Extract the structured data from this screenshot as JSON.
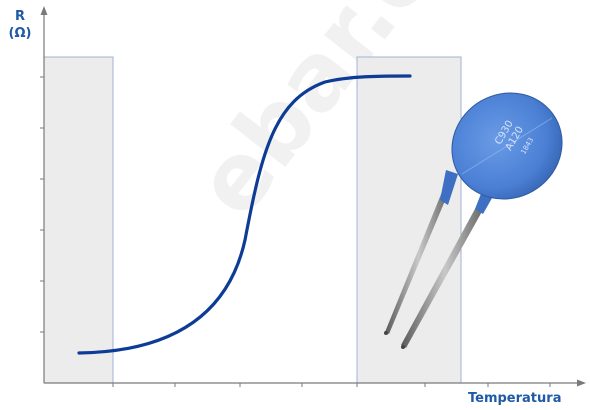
{
  "axes": {
    "y_label_line1": "R",
    "y_label_line2": "(Ω)",
    "x_label": "Temperatura"
  },
  "component": {
    "marking_line1": "C930",
    "marking_line2": "A120",
    "marking_line3": "1843"
  },
  "watermark": "ebar.es",
  "colors": {
    "curve": "#0d3c96",
    "axis_label": "#1f5aa6",
    "component_body": "#4a7fd4",
    "region_fill": "#ececec",
    "region_stroke": "#9fb3d3"
  }
}
